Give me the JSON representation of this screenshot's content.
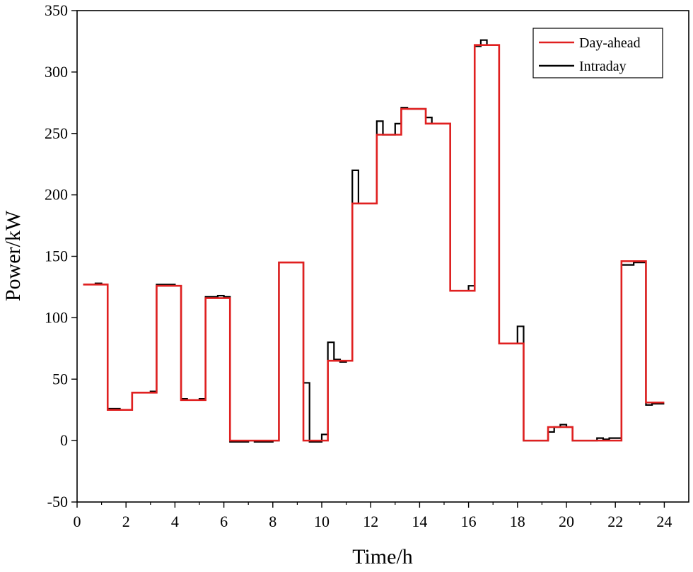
{
  "chart_data": {
    "type": "line",
    "step": "post",
    "title": "",
    "xlabel": "Time/h",
    "ylabel": "Power/kW",
    "xlim": [
      0,
      25
    ],
    "ylim": [
      -50,
      350
    ],
    "xticks": [
      0,
      2,
      4,
      6,
      8,
      10,
      12,
      14,
      16,
      18,
      20,
      22,
      24
    ],
    "yticks": [
      -50,
      0,
      50,
      100,
      150,
      200,
      250,
      300,
      350
    ],
    "xminor_ticks": [
      1,
      3,
      5,
      7,
      9,
      11,
      13,
      15,
      17,
      19,
      21,
      23
    ],
    "grid": false,
    "legend_position": "top-right",
    "legend": [
      "Day-ahead",
      "Intraday"
    ],
    "series": [
      {
        "name": "Day-ahead",
        "color": "#e02020",
        "x": [
          0.25,
          1.25,
          2.25,
          3.25,
          4.25,
          5.25,
          6.25,
          7.25,
          8.25,
          9.25,
          10.25,
          11.25,
          12.25,
          13.25,
          14.25,
          15.25,
          16.25,
          17.25,
          18.25,
          19.25,
          20.25,
          21.25,
          22.25,
          23.25,
          24.0
        ],
        "y": [
          127,
          25,
          39,
          126,
          33,
          116,
          0,
          0,
          145,
          0,
          65,
          193,
          249,
          270,
          258,
          122,
          322,
          79,
          0,
          11,
          0,
          0,
          146,
          31,
          31
        ]
      },
      {
        "name": "Intraday",
        "color": "#000000",
        "x": [
          0.25,
          0.5,
          0.75,
          1.0,
          1.25,
          1.5,
          1.75,
          2.0,
          2.25,
          2.5,
          2.75,
          3.0,
          3.25,
          3.5,
          3.75,
          4.0,
          4.25,
          4.5,
          4.75,
          5.0,
          5.25,
          5.5,
          5.75,
          6.0,
          6.25,
          6.5,
          6.75,
          7.0,
          7.25,
          7.5,
          7.75,
          8.0,
          8.25,
          8.5,
          8.75,
          9.0,
          9.25,
          9.5,
          9.75,
          10.0,
          10.25,
          10.5,
          10.75,
          11.0,
          11.25,
          11.5,
          11.75,
          12.0,
          12.25,
          12.5,
          12.75,
          13.0,
          13.25,
          13.5,
          13.75,
          14.0,
          14.25,
          14.5,
          14.75,
          15.0,
          15.25,
          15.5,
          15.75,
          16.0,
          16.25,
          16.5,
          16.75,
          17.0,
          17.25,
          17.5,
          17.75,
          18.0,
          18.25,
          18.5,
          18.75,
          19.0,
          19.25,
          19.5,
          19.75,
          20.0,
          20.25,
          20.5,
          20.75,
          21.0,
          21.25,
          21.5,
          21.75,
          22.0,
          22.25,
          22.5,
          22.75,
          23.0,
          23.25,
          23.5,
          23.75,
          24.0
        ],
        "y": [
          127,
          127,
          128,
          127,
          26,
          26,
          25,
          25,
          39,
          39,
          39,
          40,
          127,
          127,
          127,
          126,
          34,
          33,
          33,
          34,
          117,
          117,
          118,
          117,
          -1,
          -1,
          -1,
          0,
          -1,
          -1,
          -1,
          0,
          145,
          145,
          145,
          145,
          47,
          -1,
          -1,
          5,
          80,
          66,
          64,
          65,
          220,
          193,
          193,
          193,
          260,
          249,
          249,
          258,
          271,
          270,
          270,
          270,
          263,
          258,
          258,
          258,
          122,
          122,
          122,
          126,
          321,
          326,
          322,
          322,
          79,
          79,
          79,
          93,
          0,
          0,
          0,
          0,
          7,
          11,
          13,
          11,
          0,
          0,
          0,
          0,
          2,
          1,
          2,
          2,
          143,
          143,
          145,
          145,
          29,
          30,
          30,
          30
        ]
      }
    ]
  }
}
